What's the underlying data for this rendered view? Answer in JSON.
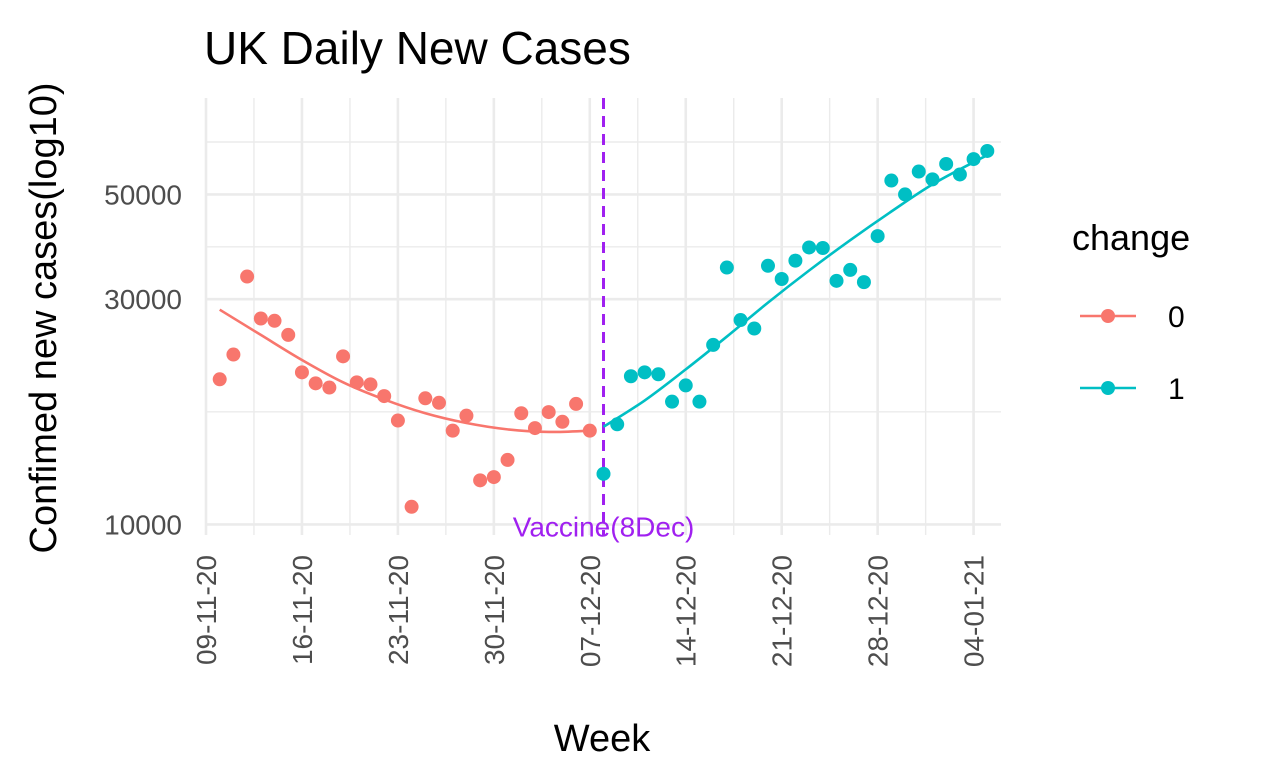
{
  "chart_data": {
    "type": "scatter",
    "title": "UK Daily New Cases",
    "xlabel": "Week",
    "ylabel": "Confimed new cases(log10)",
    "y_scale": "log10",
    "ylim": [
      9500,
      80000
    ],
    "xlim": [
      "2020-11-09",
      "2021-01-06"
    ],
    "y_ticks": [
      10000,
      30000,
      50000
    ],
    "y_tick_labels": [
      "10000",
      "30000",
      "50000"
    ],
    "x_ticks": [
      "2020-11-09",
      "2020-11-16",
      "2020-11-23",
      "2020-11-30",
      "2020-12-07",
      "2020-12-14",
      "2020-12-21",
      "2020-12-28",
      "2021-01-04"
    ],
    "x_tick_labels": [
      "09-11-20",
      "16-11-20",
      "23-11-20",
      "30-11-20",
      "07-12-20",
      "14-12-20",
      "21-12-20",
      "28-12-20",
      "04-01-21"
    ],
    "grid": true,
    "legend": {
      "title": "change",
      "position": "right"
    },
    "annotation": {
      "text": "Vaccine(8Dec)",
      "x": "2020-12-08",
      "color": "#a020f0",
      "style": "dashed vertical line"
    },
    "series": [
      {
        "name": "0",
        "color": "#F8766D",
        "x": [
          "2020-11-10",
          "2020-11-11",
          "2020-11-12",
          "2020-11-13",
          "2020-11-14",
          "2020-11-15",
          "2020-11-16",
          "2020-11-17",
          "2020-11-18",
          "2020-11-19",
          "2020-11-20",
          "2020-11-21",
          "2020-11-22",
          "2020-11-23",
          "2020-11-24",
          "2020-11-25",
          "2020-11-26",
          "2020-11-27",
          "2020-11-28",
          "2020-11-29",
          "2020-11-30",
          "2020-12-01",
          "2020-12-02",
          "2020-12-03",
          "2020-12-04",
          "2020-12-05",
          "2020-12-06",
          "2020-12-07"
        ],
        "y": [
          20300,
          22900,
          33500,
          27300,
          27000,
          25200,
          21000,
          19900,
          19500,
          22700,
          20000,
          19800,
          18700,
          16600,
          10900,
          18500,
          18100,
          15800,
          17000,
          12400,
          12600,
          13700,
          17200,
          16000,
          17300,
          16500,
          18000,
          15800
        ],
        "smooth": [
          {
            "x": "2020-11-10",
            "y": 28500
          },
          {
            "x": "2020-11-13",
            "y": 25200
          },
          {
            "x": "2020-11-16",
            "y": 22300
          },
          {
            "x": "2020-11-19",
            "y": 20000
          },
          {
            "x": "2020-11-22",
            "y": 18400
          },
          {
            "x": "2020-11-25",
            "y": 17200
          },
          {
            "x": "2020-11-28",
            "y": 16400
          },
          {
            "x": "2020-12-01",
            "y": 15900
          },
          {
            "x": "2020-12-04",
            "y": 15700
          },
          {
            "x": "2020-12-07",
            "y": 15800
          }
        ]
      },
      {
        "name": "1",
        "color": "#00BFC4",
        "x": [
          "2020-12-08",
          "2020-12-09",
          "2020-12-10",
          "2020-12-11",
          "2020-12-12",
          "2020-12-13",
          "2020-12-14",
          "2020-12-15",
          "2020-12-16",
          "2020-12-17",
          "2020-12-18",
          "2020-12-19",
          "2020-12-20",
          "2020-12-21",
          "2020-12-22",
          "2020-12-23",
          "2020-12-24",
          "2020-12-25",
          "2020-12-26",
          "2020-12-27",
          "2020-12-28",
          "2020-12-29",
          "2020-12-30",
          "2020-12-31",
          "2021-01-01",
          "2021-01-02",
          "2021-01-03",
          "2021-01-04",
          "2021-01-05"
        ],
        "y": [
          12800,
          16300,
          20600,
          21000,
          20800,
          18200,
          19700,
          18200,
          24000,
          35000,
          27100,
          26000,
          35300,
          33100,
          36200,
          38600,
          38500,
          32800,
          34600,
          32600,
          40800,
          53500,
          50000,
          55900,
          53800,
          58000,
          55100,
          59400,
          61800
        ],
        "smooth": [
          {
            "x": "2020-12-08",
            "y": 16100
          },
          {
            "x": "2020-12-11",
            "y": 18300
          },
          {
            "x": "2020-12-14",
            "y": 21300
          },
          {
            "x": "2020-12-17",
            "y": 25000
          },
          {
            "x": "2020-12-20",
            "y": 29500
          },
          {
            "x": "2020-12-23",
            "y": 34500
          },
          {
            "x": "2020-12-26",
            "y": 40000
          },
          {
            "x": "2020-12-29",
            "y": 46000
          },
          {
            "x": "2021-01-01",
            "y": 52500
          },
          {
            "x": "2021-01-04",
            "y": 58500
          },
          {
            "x": "2021-01-05",
            "y": 60500
          }
        ]
      }
    ]
  }
}
